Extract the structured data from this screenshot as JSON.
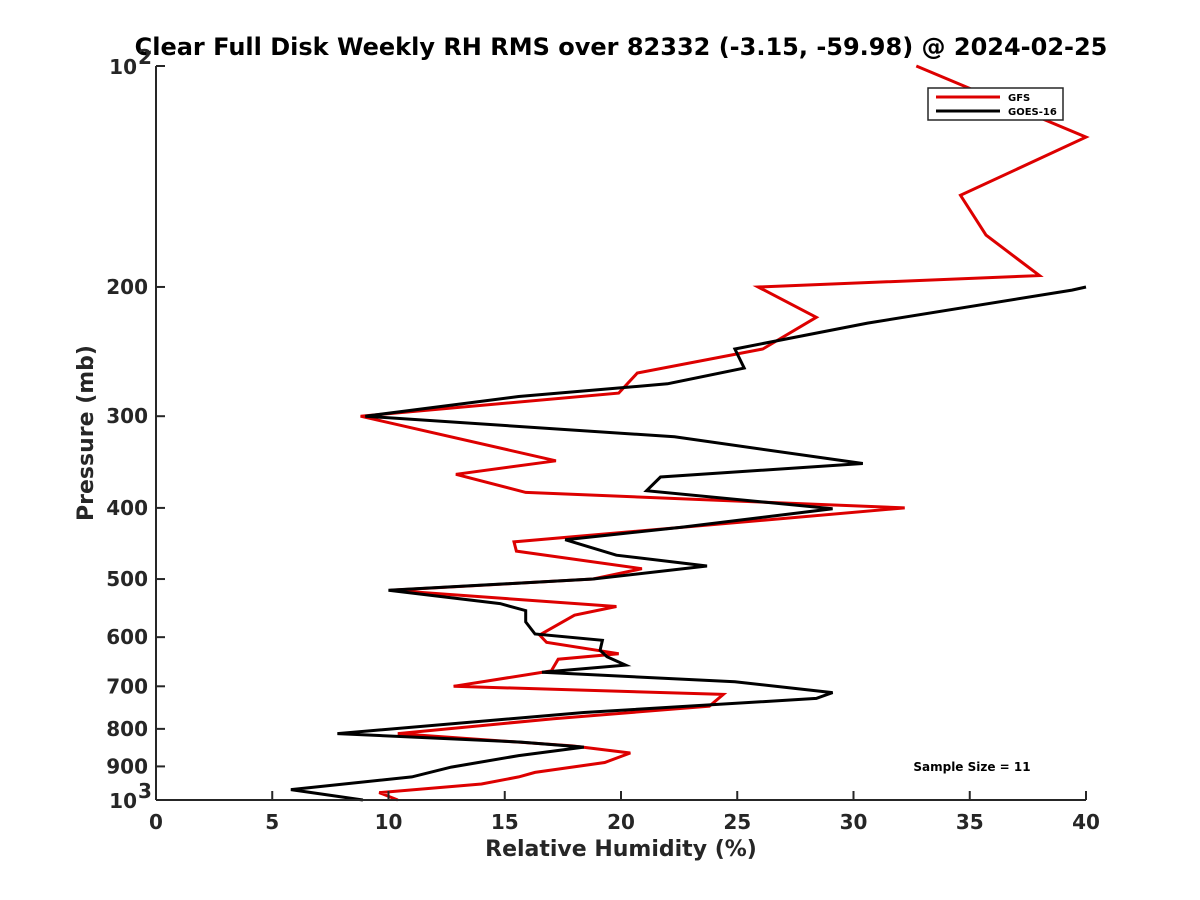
{
  "chart_data": {
    "type": "line",
    "title": "Clear Full Disk Weekly RH RMS over 82332 (-3.15, -59.98) @ 2024-02-25",
    "xlabel": "Relative Humidity (%)",
    "ylabel": "Pressure (mb)",
    "xlim": [
      0,
      40
    ],
    "ylim": [
      100,
      1000
    ],
    "y_scale": "log",
    "y_reversed": true,
    "x_ticks": [
      "0",
      "5",
      "10",
      "15",
      "20",
      "25",
      "30",
      "35",
      "40"
    ],
    "y_ticks": [
      {
        "value": 100,
        "base": "10",
        "exp": "2"
      },
      {
        "value": 200,
        "label": "200"
      },
      {
        "value": 300,
        "label": "300"
      },
      {
        "value": 400,
        "label": "400"
      },
      {
        "value": 500,
        "label": "500"
      },
      {
        "value": 600,
        "label": "600"
      },
      {
        "value": 700,
        "label": "700"
      },
      {
        "value": 800,
        "label": "800"
      },
      {
        "value": 900,
        "label": "900"
      },
      {
        "value": 1000,
        "base": "10",
        "exp": "3"
      }
    ],
    "legend": {
      "position": "top-right",
      "entries": [
        {
          "name": "GFS",
          "color": "#dd0000"
        },
        {
          "name": "GOES-16",
          "color": "#000000"
        }
      ]
    },
    "annotation": "Sample Size = 11",
    "series": [
      {
        "name": "GFS",
        "color": "#dd0000",
        "points": [
          [
            32.7,
            100
          ],
          [
            40.0,
            125
          ],
          [
            34.6,
            150
          ],
          [
            35.7,
            170
          ],
          [
            38.0,
            193
          ],
          [
            25.9,
            200
          ],
          [
            28.4,
            220
          ],
          [
            26.1,
            243
          ],
          [
            20.7,
            262
          ],
          [
            19.9,
            279
          ],
          [
            8.8,
            300
          ],
          [
            17.2,
            345
          ],
          [
            12.9,
            360
          ],
          [
            15.9,
            381
          ],
          [
            32.2,
            400
          ],
          [
            15.4,
            445
          ],
          [
            15.5,
            458
          ],
          [
            20.9,
            484
          ],
          [
            18.8,
            500
          ],
          [
            10.1,
            518
          ],
          [
            19.8,
            545
          ],
          [
            18.0,
            560
          ],
          [
            16.5,
            596
          ],
          [
            16.8,
            610
          ],
          [
            19.9,
            632
          ],
          [
            17.3,
            643
          ],
          [
            17.0,
            667
          ],
          [
            12.8,
            700
          ],
          [
            24.4,
            718
          ],
          [
            23.8,
            745
          ],
          [
            17.1,
            775
          ],
          [
            10.4,
            812
          ],
          [
            17.9,
            844
          ],
          [
            20.4,
            863
          ],
          [
            19.3,
            889
          ],
          [
            16.3,
            917
          ],
          [
            15.6,
            930
          ],
          [
            14.0,
            951
          ],
          [
            9.6,
            977
          ],
          [
            10.4,
            1000
          ]
        ]
      },
      {
        "name": "GOES-16",
        "color": "#000000",
        "points": [
          [
            40.0,
            200
          ],
          [
            39.4,
            202
          ],
          [
            30.6,
            224
          ],
          [
            24.9,
            243
          ],
          [
            25.3,
            258
          ],
          [
            22.0,
            271
          ],
          [
            15.6,
            282
          ],
          [
            9.0,
            300
          ],
          [
            22.3,
            320
          ],
          [
            30.4,
            348
          ],
          [
            21.7,
            363
          ],
          [
            21.1,
            379
          ],
          [
            29.1,
            401
          ],
          [
            22.6,
            425
          ],
          [
            17.6,
            442
          ],
          [
            19.8,
            464
          ],
          [
            23.7,
            480
          ],
          [
            18.8,
            500
          ],
          [
            10.0,
            518
          ],
          [
            14.8,
            540
          ],
          [
            15.9,
            552
          ],
          [
            15.9,
            572
          ],
          [
            16.3,
            594
          ],
          [
            19.2,
            606
          ],
          [
            19.1,
            625
          ],
          [
            19.4,
            638
          ],
          [
            20.2,
            655
          ],
          [
            16.6,
            670
          ],
          [
            24.9,
            690
          ],
          [
            29.1,
            714
          ],
          [
            28.4,
            727
          ],
          [
            18.4,
            760
          ],
          [
            7.8,
            812
          ],
          [
            15.7,
            834
          ],
          [
            18.4,
            847
          ],
          [
            15.6,
            870
          ],
          [
            12.7,
            902
          ],
          [
            11.0,
            930
          ],
          [
            5.8,
            968
          ],
          [
            8.9,
            1000
          ]
        ]
      }
    ]
  }
}
